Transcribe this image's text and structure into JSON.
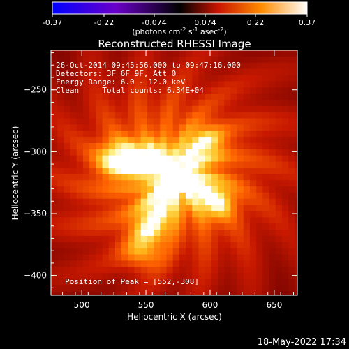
{
  "chart_data": {
    "type": "heatmap",
    "title": "Reconstructed RHESSI Image",
    "xlabel": "Heliocentric X (arcsec)",
    "ylabel": "Heliocentric Y (arcsec)",
    "xlim": [
      476,
      668
    ],
    "ylim": [
      -416,
      -218
    ],
    "x_ticks": [
      "500",
      "550",
      "600",
      "650"
    ],
    "x_tick_values": [
      500,
      550,
      600,
      650
    ],
    "y_ticks": [
      "-250",
      "-300",
      "-350",
      "-400"
    ],
    "y_tick_values": [
      -250,
      -300,
      -350,
      -400
    ],
    "colorbar": {
      "ticks": [
        "-0.37",
        "-0.22",
        "-0.074",
        "0.074",
        "0.22",
        "0.37"
      ],
      "tick_values": [
        -0.37,
        -0.22,
        -0.074,
        0.074,
        0.22,
        0.37
      ],
      "range": [
        -0.37,
        0.37
      ],
      "label_parts": [
        "(photons cm",
        "-2",
        " s",
        "-1",
        " asec",
        "-2",
        ")"
      ],
      "colors": [
        "#0000ff",
        "#6a00c8",
        "#000000",
        "#c81400",
        "#ff8c00",
        "#ffffff"
      ]
    },
    "annotations": [
      "26-Oct-2014 09:45:56.000 to 09:47:16.000",
      "Detectors: 3F 6F 9F, Att 0",
      "Energy Range: 6.0 - 12.0 keV",
      "Clean     Total counts: 6.34E+04"
    ],
    "peak_label": "Position of Peak = [552,-308]",
    "peak": [
      552,
      -308
    ]
  },
  "footer": {
    "timestamp": "18-May-2022 17:34"
  }
}
